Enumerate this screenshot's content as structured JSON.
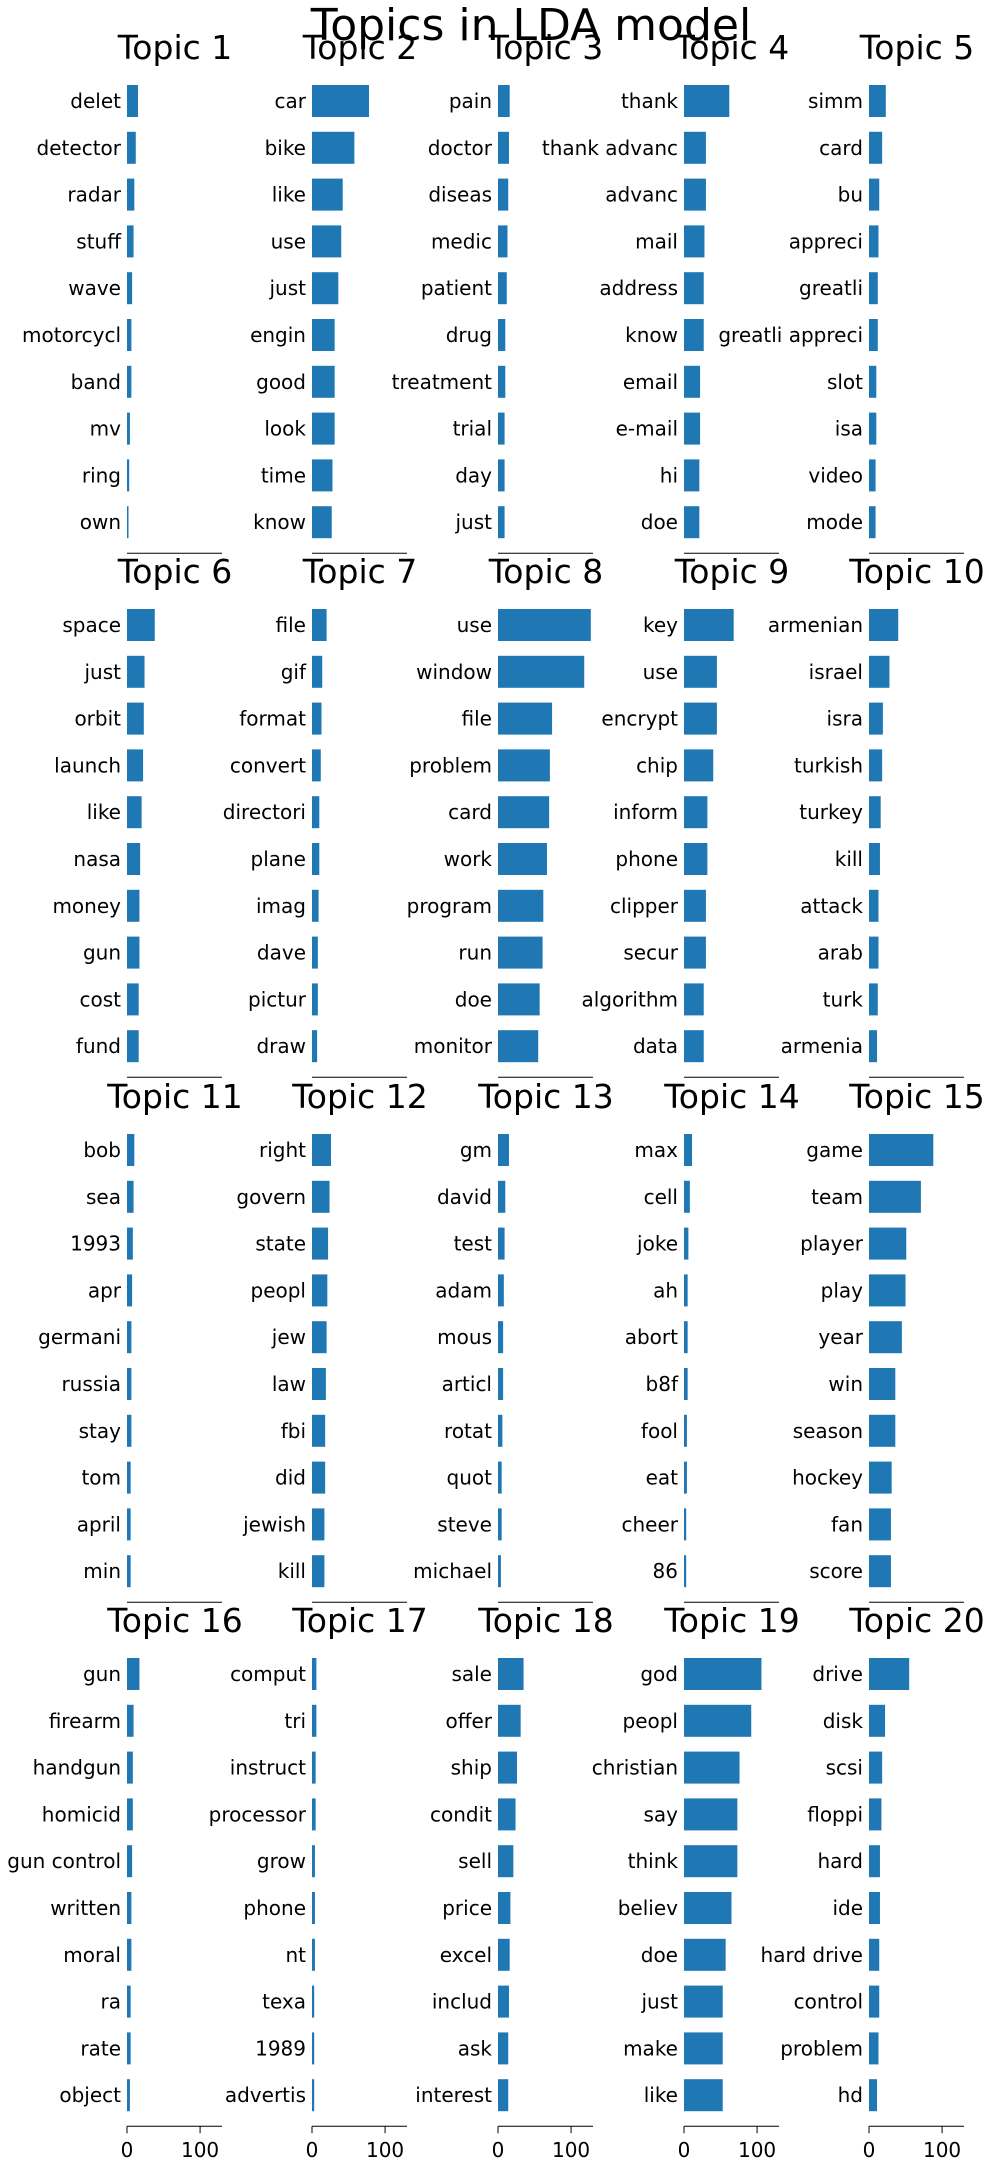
{
  "figure_title": "Topics in LDA model",
  "colors": {
    "bar": "#1f77b4",
    "axis": "#000000",
    "text": "#000000"
  },
  "chart_data": [
    {
      "type": "bar",
      "orientation": "horizontal",
      "title": "Topic 1",
      "categories": [
        "delet",
        "detector",
        "radar",
        "stuff",
        "wave",
        "motorcycl",
        "band",
        "mv",
        "ring",
        "own"
      ],
      "values": [
        15,
        12,
        10,
        9,
        7,
        6,
        6,
        4,
        3,
        2
      ],
      "xlim": [
        0,
        130
      ],
      "xticks": []
    },
    {
      "type": "bar",
      "orientation": "horizontal",
      "title": "Topic 2",
      "categories": [
        "car",
        "bike",
        "like",
        "use",
        "just",
        "engin",
        "good",
        "look",
        "time",
        "know"
      ],
      "values": [
        78,
        58,
        42,
        40,
        36,
        31,
        31,
        31,
        28,
        27
      ],
      "xlim": [
        0,
        130
      ],
      "xticks": []
    },
    {
      "type": "bar",
      "orientation": "horizontal",
      "title": "Topic 3",
      "categories": [
        "pain",
        "doctor",
        "diseas",
        "medic",
        "patient",
        "drug",
        "treatment",
        "trial",
        "day",
        "just"
      ],
      "values": [
        16,
        15,
        14,
        13,
        12,
        10,
        10,
        9,
        9,
        9
      ],
      "xlim": [
        0,
        130
      ],
      "xticks": []
    },
    {
      "type": "bar",
      "orientation": "horizontal",
      "title": "Topic 4",
      "categories": [
        "thank",
        "thank advanc",
        "advanc",
        "mail",
        "address",
        "know",
        "email",
        "e-mail",
        "hi",
        "doe"
      ],
      "values": [
        62,
        30,
        30,
        28,
        27,
        27,
        22,
        22,
        21,
        21
      ],
      "xlim": [
        0,
        130
      ],
      "xticks": []
    },
    {
      "type": "bar",
      "orientation": "horizontal",
      "title": "Topic 5",
      "categories": [
        "simm",
        "card",
        "bu",
        "appreci",
        "greatli",
        "greatli appreci",
        "slot",
        "isa",
        "video",
        "mode"
      ],
      "values": [
        23,
        18,
        14,
        13,
        12,
        12,
        10,
        10,
        9,
        9
      ],
      "xlim": [
        0,
        130
      ],
      "xticks": []
    },
    {
      "type": "bar",
      "orientation": "horizontal",
      "title": "Topic 6",
      "categories": [
        "space",
        "just",
        "orbit",
        "launch",
        "like",
        "nasa",
        "money",
        "gun",
        "cost",
        "fund"
      ],
      "values": [
        38,
        24,
        23,
        22,
        20,
        18,
        17,
        17,
        16,
        16
      ],
      "xlim": [
        0,
        130
      ],
      "xticks": []
    },
    {
      "type": "bar",
      "orientation": "horizontal",
      "title": "Topic 7",
      "categories": [
        "file",
        "gif",
        "format",
        "convert",
        "directori",
        "plane",
        "imag",
        "dave",
        "pictur",
        "draw"
      ],
      "values": [
        20,
        14,
        13,
        12,
        10,
        10,
        9,
        8,
        8,
        7
      ],
      "xlim": [
        0,
        130
      ],
      "xticks": []
    },
    {
      "type": "bar",
      "orientation": "horizontal",
      "title": "Topic 8",
      "categories": [
        "use",
        "window",
        "file",
        "problem",
        "card",
        "work",
        "program",
        "run",
        "doe",
        "monitor"
      ],
      "values": [
        127,
        118,
        74,
        71,
        70,
        67,
        62,
        61,
        57,
        55
      ],
      "xlim": [
        0,
        130
      ],
      "xticks": []
    },
    {
      "type": "bar",
      "orientation": "horizontal",
      "title": "Topic 9",
      "categories": [
        "key",
        "use",
        "encrypt",
        "chip",
        "inform",
        "phone",
        "clipper",
        "secur",
        "algorithm",
        "data"
      ],
      "values": [
        68,
        45,
        45,
        40,
        32,
        32,
        30,
        30,
        27,
        27
      ],
      "xlim": [
        0,
        130
      ],
      "xticks": []
    },
    {
      "type": "bar",
      "orientation": "horizontal",
      "title": "Topic 10",
      "categories": [
        "armenian",
        "israel",
        "isra",
        "turkish",
        "turkey",
        "kill",
        "attack",
        "arab",
        "turk",
        "armenia"
      ],
      "values": [
        40,
        28,
        19,
        18,
        16,
        15,
        13,
        13,
        12,
        11
      ],
      "xlim": [
        0,
        130
      ],
      "xticks": []
    },
    {
      "type": "bar",
      "orientation": "horizontal",
      "title": "Topic 11",
      "categories": [
        "bob",
        "sea",
        "1993",
        "apr",
        "germani",
        "russia",
        "stay",
        "tom",
        "april",
        "min"
      ],
      "values": [
        10,
        9,
        8,
        7,
        6,
        6,
        6,
        5,
        5,
        5
      ],
      "xlim": [
        0,
        130
      ],
      "xticks": []
    },
    {
      "type": "bar",
      "orientation": "horizontal",
      "title": "Topic 12",
      "categories": [
        "right",
        "govern",
        "state",
        "peopl",
        "jew",
        "law",
        "fbi",
        "did",
        "jewish",
        "kill"
      ],
      "values": [
        26,
        24,
        22,
        21,
        20,
        19,
        18,
        18,
        17,
        17
      ],
      "xlim": [
        0,
        130
      ],
      "xticks": []
    },
    {
      "type": "bar",
      "orientation": "horizontal",
      "title": "Topic 13",
      "categories": [
        "gm",
        "david",
        "test",
        "adam",
        "mous",
        "articl",
        "rotat",
        "quot",
        "steve",
        "michael"
      ],
      "values": [
        15,
        10,
        9,
        8,
        7,
        7,
        6,
        5,
        5,
        4
      ],
      "xlim": [
        0,
        130
      ],
      "xticks": []
    },
    {
      "type": "bar",
      "orientation": "horizontal",
      "title": "Topic 14",
      "categories": [
        "max",
        "cell",
        "joke",
        "ah",
        "abort",
        "b8f",
        "fool",
        "eat",
        "cheer",
        "86"
      ],
      "values": [
        11,
        8,
        6,
        5,
        5,
        5,
        4,
        4,
        3,
        3
      ],
      "xlim": [
        0,
        130
      ],
      "xticks": []
    },
    {
      "type": "bar",
      "orientation": "horizontal",
      "title": "Topic 15",
      "categories": [
        "game",
        "team",
        "player",
        "play",
        "year",
        "win",
        "season",
        "hockey",
        "fan",
        "score"
      ],
      "values": [
        88,
        71,
        51,
        50,
        45,
        36,
        36,
        31,
        30,
        30
      ],
      "xlim": [
        0,
        130
      ],
      "xticks": []
    },
    {
      "type": "bar",
      "orientation": "horizontal",
      "title": "Topic 16",
      "categories": [
        "gun",
        "firearm",
        "handgun",
        "homicid",
        "gun control",
        "written",
        "moral",
        "ra",
        "rate",
        "object"
      ],
      "values": [
        17,
        9,
        8,
        8,
        7,
        6,
        6,
        5,
        5,
        4
      ],
      "xlim": [
        0,
        130
      ],
      "xticks": [
        0,
        100
      ]
    },
    {
      "type": "bar",
      "orientation": "horizontal",
      "title": "Topic 17",
      "categories": [
        "comput",
        "tri",
        "instruct",
        "processor",
        "grow",
        "phone",
        "nt",
        "texa",
        "1989",
        "advertis"
      ],
      "values": [
        6,
        6,
        5,
        5,
        4,
        4,
        4,
        3,
        3,
        3
      ],
      "xlim": [
        0,
        130
      ],
      "xticks": [
        0,
        100
      ]
    },
    {
      "type": "bar",
      "orientation": "horizontal",
      "title": "Topic 18",
      "categories": [
        "sale",
        "offer",
        "ship",
        "condit",
        "sell",
        "price",
        "excel",
        "includ",
        "ask",
        "interest"
      ],
      "values": [
        35,
        31,
        26,
        24,
        21,
        17,
        16,
        15,
        14,
        14
      ],
      "xlim": [
        0,
        130
      ],
      "xticks": [
        0,
        100
      ]
    },
    {
      "type": "bar",
      "orientation": "horizontal",
      "title": "Topic 19",
      "categories": [
        "god",
        "peopl",
        "christian",
        "say",
        "think",
        "believ",
        "doe",
        "just",
        "make",
        "like"
      ],
      "values": [
        106,
        92,
        76,
        73,
        73,
        65,
        57,
        53,
        53,
        53
      ],
      "xlim": [
        0,
        130
      ],
      "xticks": [
        0,
        100
      ]
    },
    {
      "type": "bar",
      "orientation": "horizontal",
      "title": "Topic 20",
      "categories": [
        "drive",
        "disk",
        "scsi",
        "floppi",
        "hard",
        "ide",
        "hard drive",
        "control",
        "problem",
        "hd"
      ],
      "values": [
        55,
        22,
        18,
        17,
        15,
        15,
        14,
        14,
        13,
        11
      ],
      "xlim": [
        0,
        130
      ],
      "xticks": [
        0,
        100
      ]
    }
  ]
}
